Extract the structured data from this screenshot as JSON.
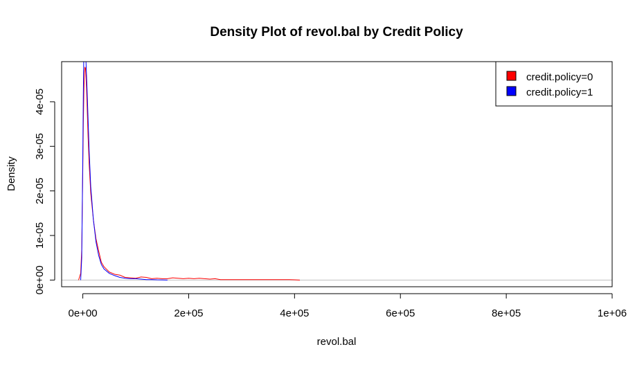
{
  "chart_data": {
    "type": "line",
    "title": "Density Plot of revol.bal by Credit Policy",
    "xlabel": "revol.bal",
    "ylabel": "Density",
    "xlim": [
      -40000,
      1000000
    ],
    "ylim": [
      -1.5e-06,
      4.9e-05
    ],
    "x_ticks": [
      {
        "value": 0,
        "label": "0e+00"
      },
      {
        "value": 200000,
        "label": "2e+05"
      },
      {
        "value": 400000,
        "label": "4e+05"
      },
      {
        "value": 600000,
        "label": "6e+05"
      },
      {
        "value": 800000,
        "label": "8e+05"
      },
      {
        "value": 1000000,
        "label": "1e+06"
      }
    ],
    "y_ticks": [
      {
        "value": 0,
        "label": "0e+00"
      },
      {
        "value": 1e-05,
        "label": "1e-05"
      },
      {
        "value": 2e-05,
        "label": "2e-05"
      },
      {
        "value": 3e-05,
        "label": "3e-05"
      },
      {
        "value": 4e-05,
        "label": "4e-05"
      }
    ],
    "baseline": 0,
    "legend": {
      "position": "top-right"
    },
    "series": [
      {
        "name": "credit.policy=0",
        "color": "#ff0000",
        "x": [
          -8000,
          -4000,
          -2000,
          0,
          1000,
          2000,
          3000,
          4000,
          5000,
          6000,
          7000,
          8000,
          10000,
          12000,
          15000,
          20000,
          25000,
          30000,
          35000,
          40000,
          50000,
          60000,
          70000,
          80000,
          90000,
          100000,
          110000,
          120000,
          130000,
          140000,
          150000,
          160000,
          170000,
          180000,
          190000,
          200000,
          210000,
          220000,
          230000,
          240000,
          250000,
          260000,
          270000,
          280000,
          290000,
          390000,
          400000,
          410000
        ],
        "y": [
          0,
          1.5e-06,
          7e-06,
          2.5e-05,
          3.5e-05,
          4.2e-05,
          4.65e-05,
          4.78e-05,
          4.75e-05,
          4.55e-05,
          4.3e-05,
          3.95e-05,
          3.2e-05,
          2.6e-05,
          1.95e-05,
          1.35e-05,
          9.2e-06,
          6.5e-06,
          4e-06,
          3e-06,
          1.8e-06,
          1.3e-06,
          1.1e-06,
          6e-07,
          5e-07,
          4e-07,
          7e-07,
          6e-07,
          3e-07,
          4e-07,
          3e-07,
          3e-07,
          5e-07,
          4e-07,
          3e-07,
          4e-07,
          3e-07,
          4e-07,
          3e-07,
          2e-07,
          3e-07,
          1e-07,
          1e-07,
          1e-07,
          1e-07,
          1e-07,
          5e-08,
          0
        ]
      },
      {
        "name": "credit.policy=1",
        "color": "#0000ff",
        "x": [
          -4000,
          -2000,
          0,
          1000,
          2000,
          3000,
          4000,
          5000,
          6000,
          7000,
          8000,
          10000,
          12000,
          15000,
          20000,
          25000,
          30000,
          35000,
          40000,
          50000,
          60000,
          70000,
          80000,
          90000,
          100000,
          110000,
          120000,
          130000,
          140000,
          150000,
          160000
        ],
        "y": [
          0,
          5e-06,
          2.8e-05,
          4.2e-05,
          5.2e-05,
          5.6e-05,
          5.5e-05,
          5.2e-05,
          4.9e-05,
          4.6e-05,
          4.3e-05,
          3.6e-05,
          2.9e-05,
          2.1e-05,
          1.35e-05,
          8.5e-06,
          5.5e-06,
          3.5e-06,
          2.5e-06,
          1.5e-06,
          1e-06,
          6e-07,
          4e-07,
          3e-07,
          3e-07,
          2e-07,
          1e-07,
          1e-07,
          5e-08,
          3e-08,
          0
        ]
      }
    ]
  }
}
